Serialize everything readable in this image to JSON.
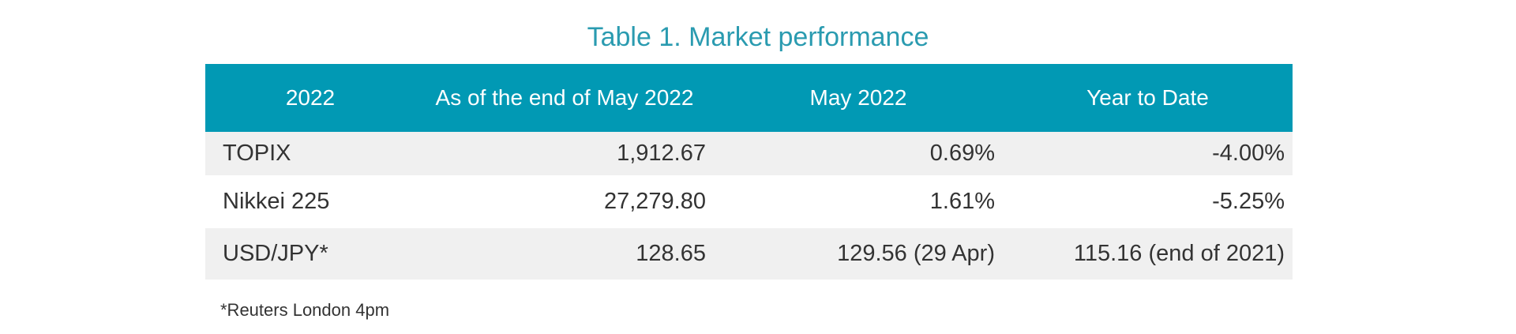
{
  "title": "Table 1. Market performance",
  "table": {
    "header": [
      "2022",
      "As of the end of May 2022",
      "May 2022",
      "Year to Date"
    ],
    "rows": [
      [
        "TOPIX",
        "1,912.67",
        "0.69%",
        "-4.00%"
      ],
      [
        "Nikkei 225",
        "27,279.80",
        "1.61%",
        "-5.25%"
      ],
      [
        "USD/JPY*",
        "128.65",
        "129.56 (29 Apr)",
        "115.16 (end of 2021)"
      ]
    ]
  },
  "footnote": "*Reuters London 4pm"
}
